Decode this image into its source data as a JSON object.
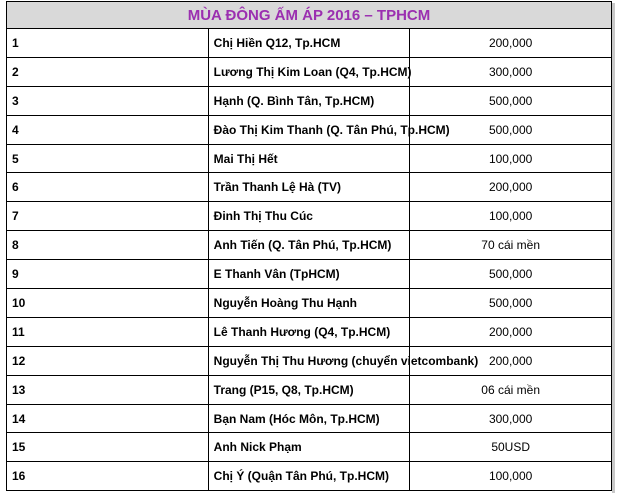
{
  "title": "MÙA ĐÔNG ẤM ÁP 2016 – TPHCM",
  "rows": [
    {
      "no": "1",
      "name": "Chị Hiền Q12, Tp.HCM",
      "amount": "200,000"
    },
    {
      "no": "2",
      "name": "Lương Thị Kim Loan (Q4, Tp.HCM)",
      "amount": "300,000"
    },
    {
      "no": "3",
      "name": "Hạnh (Q. Bình Tân, Tp.HCM)",
      "amount": "500,000"
    },
    {
      "no": "4",
      "name": "Đào Thị Kim Thanh (Q. Tân Phú, Tp.HCM)",
      "amount": "500,000"
    },
    {
      "no": "5",
      "name": "Mai Thị Hết",
      "amount": "100,000"
    },
    {
      "no": "6",
      "name": "Trần Thanh Lệ Hà (TV)",
      "amount": "200,000"
    },
    {
      "no": "7",
      "name": "Đinh Thị Thu Cúc",
      "amount": "100,000"
    },
    {
      "no": "8",
      "name": "Anh Tiến (Q. Tân Phú, Tp.HCM)",
      "amount": "70 cái mền"
    },
    {
      "no": "9",
      "name": "E Thanh Vân (TpHCM)",
      "amount": "500,000"
    },
    {
      "no": "10",
      "name": "Nguyễn Hoàng Thu Hạnh",
      "amount": "500,000"
    },
    {
      "no": "11",
      "name": "Lê Thanh Hương (Q4, Tp.HCM)",
      "amount": "200,000"
    },
    {
      "no": "12",
      "name": "Nguyễn Thị Thu Hương (chuyển vietcombank)",
      "amount": "200,000"
    },
    {
      "no": "13",
      "name": "Trang  (P15, Q8, Tp.HCM)",
      "amount": "06 cái mền"
    },
    {
      "no": "14",
      "name": "Bạn Nam (Hóc Môn, Tp.HCM)",
      "amount": "300,000"
    },
    {
      "no": "15",
      "name": "Anh Nick Phạm",
      "amount": "50USD"
    },
    {
      "no": "16",
      "name": "Chị Ý (Quận Tân Phú, Tp.HCM)",
      "amount": "100,000"
    }
  ],
  "colors": {
    "title_text": "#9b2fb0",
    "title_bg": "#d9d9d9",
    "border": "#000000"
  }
}
